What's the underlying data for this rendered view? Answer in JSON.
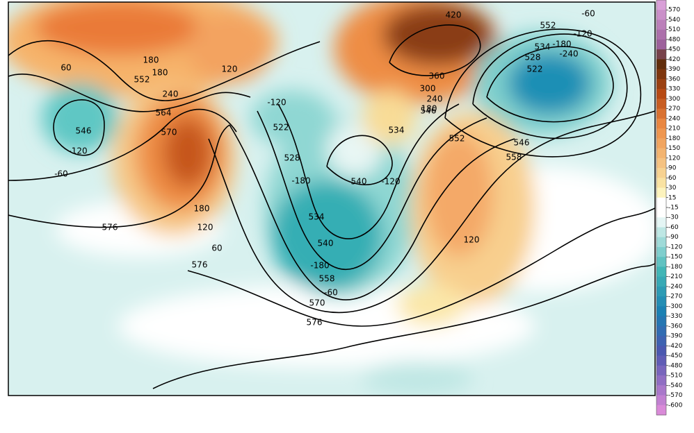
{
  "map": {
    "contour_labels": [
      60,
      552,
      180,
      180,
      240,
      564,
      570,
      546,
      -120,
      -60,
      576,
      180,
      120,
      60,
      576,
      120,
      -120,
      522,
      528,
      -180,
      534,
      540,
      -120,
      540,
      -180,
      558,
      -60,
      570,
      576,
      534,
      546,
      552,
      558,
      546,
      120,
      552,
      -60,
      -120,
      534,
      -180,
      -240,
      528,
      522,
      180,
      240,
      300,
      360,
      420
    ],
    "colorbar": {
      "labels": [
        570,
        540,
        510,
        480,
        450,
        420,
        390,
        360,
        330,
        300,
        270,
        240,
        210,
        180,
        150,
        120,
        90,
        60,
        30,
        15,
        -15,
        -30,
        -60,
        -90,
        -120,
        -150,
        -180,
        -210,
        -240,
        -270,
        -300,
        -330,
        -360,
        -390,
        -420,
        -450,
        -480,
        -510,
        -540,
        -570,
        -600
      ]
    }
  }
}
